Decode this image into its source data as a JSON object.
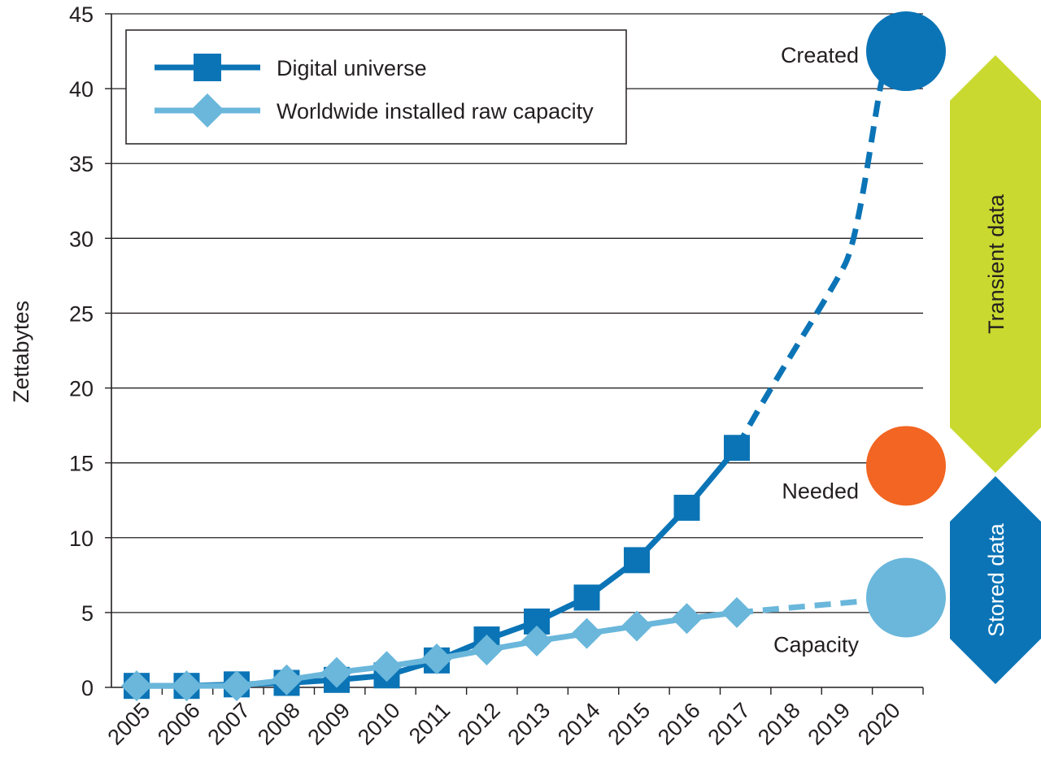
{
  "chart_data": {
    "type": "line",
    "title": "",
    "xlabel": "",
    "ylabel": "Zettabytes",
    "ylim": [
      0,
      45
    ],
    "yticks": [
      0,
      5,
      10,
      15,
      20,
      25,
      30,
      35,
      40,
      45
    ],
    "categories": [
      "2005",
      "2006",
      "2007",
      "2008",
      "2009",
      "2010",
      "2011",
      "2012",
      "2013",
      "2014",
      "2015",
      "2016",
      "2017",
      "2018",
      "2019",
      "2020"
    ],
    "grid": true,
    "legend_position": "top-left",
    "series": [
      {
        "name": "Digital universe",
        "marker": "square",
        "color": "#0b74b6",
        "values": [
          0.1,
          0.1,
          0.2,
          0.3,
          0.5,
          0.8,
          1.8,
          3.2,
          4.4,
          6.0,
          8.5,
          12.0,
          16.0,
          null,
          null,
          null
        ],
        "projection": {
          "x": [
            "2017",
            "2018",
            "2019",
            "2020"
          ],
          "values": [
            16.0,
            20.0,
            25.0,
            41.0
          ]
        }
      },
      {
        "name": "Worldwide installed raw capacity",
        "marker": "diamond",
        "color": "#6ab7db",
        "values": [
          0.1,
          0.1,
          0.1,
          0.5,
          1.0,
          1.4,
          1.9,
          2.5,
          3.1,
          3.6,
          4.1,
          4.6,
          5.0,
          null,
          null,
          null
        ],
        "projection": {
          "x": [
            "2017",
            "2018",
            "2019",
            "2020"
          ],
          "values": [
            5.0,
            5.3,
            5.6,
            5.9
          ]
        }
      }
    ],
    "endpoints": [
      {
        "label": "Created",
        "value": 42.5,
        "color": "#0b74b6"
      },
      {
        "label": "Needed",
        "value": 14.8,
        "color": "#f26522"
      },
      {
        "label": "Capacity",
        "value": 6.0,
        "color": "#6ab7db"
      }
    ],
    "side_bands": [
      {
        "label": "Transient data",
        "color": "#c9d92f",
        "range": [
          14.8,
          42.5
        ]
      },
      {
        "label": "Stored data",
        "color": "#0b74b6",
        "range": [
          0,
          14.8
        ]
      }
    ]
  }
}
